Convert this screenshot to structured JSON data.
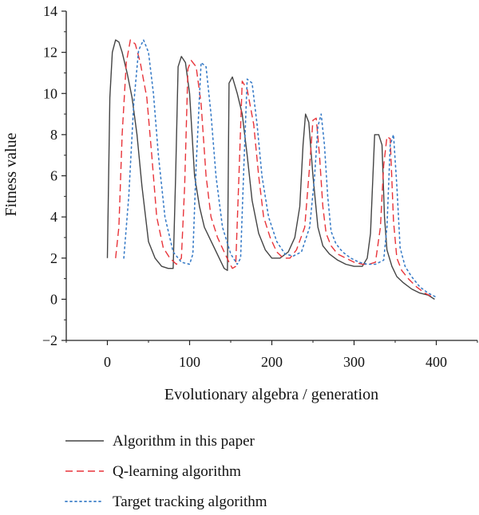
{
  "chart_data": {
    "type": "line",
    "xlabel": "Evolutionary algebra / generation",
    "ylabel": "Fitness value",
    "xlim": [
      -50,
      450
    ],
    "ylim": [
      -2,
      14
    ],
    "xticks": [
      0,
      100,
      200,
      300,
      400
    ],
    "yticks": [
      -2,
      0,
      2,
      4,
      6,
      8,
      10,
      12,
      14
    ],
    "grid": false,
    "legend_position": "bottom",
    "series": [
      {
        "name": "Algorithm in this paper",
        "color": "#444444",
        "style": "solid",
        "x": [
          0,
          3,
          6,
          10,
          14,
          18,
          24,
          30,
          36,
          42,
          50,
          58,
          66,
          74,
          80,
          83,
          86,
          90,
          95,
          100,
          106,
          112,
          118,
          124,
          130,
          136,
          142,
          146,
          148,
          152,
          158,
          164,
          170,
          176,
          184,
          192,
          200,
          210,
          220,
          228,
          234,
          238,
          241,
          245,
          250,
          256,
          262,
          270,
          280,
          290,
          300,
          310,
          316,
          320,
          325,
          330,
          334,
          337,
          340,
          346,
          352,
          360,
          370,
          380,
          390,
          398
        ],
        "values": [
          2.0,
          9.8,
          12.0,
          12.6,
          12.5,
          12.0,
          11.0,
          9.8,
          8.0,
          5.5,
          2.8,
          2.0,
          1.6,
          1.5,
          1.5,
          6.0,
          11.3,
          11.8,
          11.5,
          10.0,
          6.0,
          4.5,
          3.5,
          3.0,
          2.5,
          2.0,
          1.5,
          1.4,
          10.5,
          10.8,
          10.0,
          9.0,
          7.0,
          4.8,
          3.2,
          2.4,
          2.0,
          2.0,
          2.3,
          3.0,
          4.5,
          7.5,
          9.0,
          8.6,
          6.0,
          3.5,
          2.6,
          2.2,
          1.9,
          1.7,
          1.6,
          1.6,
          2.0,
          3.2,
          8.0,
          8.0,
          7.5,
          4.0,
          2.4,
          1.6,
          1.1,
          0.8,
          0.5,
          0.3,
          0.2,
          0.0
        ]
      },
      {
        "name": "Q-learning algorithm",
        "color": "#e8343a",
        "style": "dashed",
        "x": [
          10,
          14,
          18,
          23,
          28,
          34,
          40,
          48,
          54,
          60,
          68,
          76,
          84,
          90,
          94,
          98,
          102,
          108,
          114,
          120,
          126,
          134,
          142,
          148,
          152,
          156,
          160,
          164,
          170,
          178,
          184,
          190,
          198,
          206,
          214,
          222,
          230,
          240,
          246,
          250,
          254,
          258,
          262,
          266,
          272,
          280,
          290,
          300,
          310,
          318,
          326,
          332,
          336,
          340,
          344,
          348,
          352,
          358,
          366,
          376,
          386,
          396
        ],
        "values": [
          2.0,
          3.5,
          8.0,
          11.5,
          12.6,
          12.4,
          11.5,
          9.8,
          7.0,
          4.0,
          2.5,
          2.0,
          1.7,
          2.0,
          5.5,
          11.2,
          11.6,
          11.3,
          9.5,
          6.0,
          4.0,
          3.0,
          2.3,
          1.8,
          1.5,
          1.6,
          6.0,
          10.6,
          10.2,
          8.5,
          6.0,
          4.0,
          3.0,
          2.3,
          2.0,
          2.0,
          2.4,
          3.5,
          6.5,
          8.7,
          8.8,
          7.0,
          4.5,
          3.2,
          2.6,
          2.2,
          2.0,
          1.8,
          1.7,
          1.7,
          1.8,
          3.5,
          6.5,
          7.9,
          7.8,
          3.8,
          2.0,
          1.4,
          1.0,
          0.6,
          0.3,
          0.1
        ]
      },
      {
        "name": "Target tracking algorithm",
        "color": "#3a7dc8",
        "style": "dotted",
        "x": [
          20,
          26,
          32,
          38,
          44,
          50,
          56,
          62,
          70,
          80,
          90,
          100,
          104,
          108,
          114,
          120,
          126,
          132,
          140,
          150,
          158,
          162,
          166,
          170,
          176,
          182,
          188,
          196,
          206,
          216,
          226,
          236,
          246,
          252,
          256,
          260,
          264,
          268,
          272,
          278,
          286,
          296,
          306,
          316,
          326,
          336,
          340,
          344,
          348,
          352,
          356,
          362,
          370,
          380,
          390,
          400
        ],
        "values": [
          2.0,
          5.0,
          9.5,
          12.1,
          12.6,
          12.0,
          10.0,
          7.0,
          4.0,
          2.3,
          1.8,
          1.7,
          2.2,
          6.5,
          11.5,
          11.3,
          9.0,
          6.0,
          3.5,
          2.2,
          1.7,
          2.0,
          6.5,
          10.7,
          10.5,
          8.5,
          6.0,
          4.0,
          2.8,
          2.2,
          2.1,
          2.3,
          3.5,
          6.0,
          8.4,
          9.0,
          7.5,
          5.0,
          3.3,
          2.7,
          2.3,
          2.0,
          1.8,
          1.7,
          1.7,
          1.9,
          3.5,
          7.5,
          8.0,
          5.5,
          2.5,
          1.6,
          1.1,
          0.6,
          0.3,
          0.1
        ]
      }
    ]
  }
}
